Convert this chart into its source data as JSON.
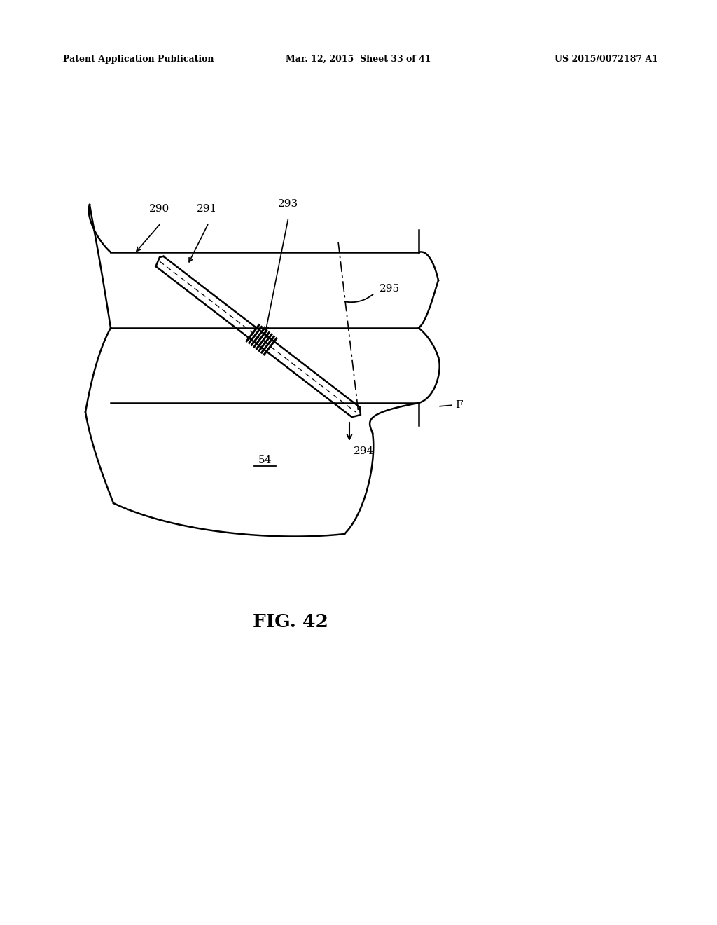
{
  "bg_color": "#ffffff",
  "header_left": "Patent Application Publication",
  "header_mid": "Mar. 12, 2015  Sheet 33 of 41",
  "header_right": "US 2015/0072187 A1",
  "fig_label": "FIG. 42",
  "label_54": "54",
  "label_290": "290",
  "label_291": "291",
  "label_293": "293",
  "label_294": "294",
  "label_295": "295",
  "label_F": "F"
}
